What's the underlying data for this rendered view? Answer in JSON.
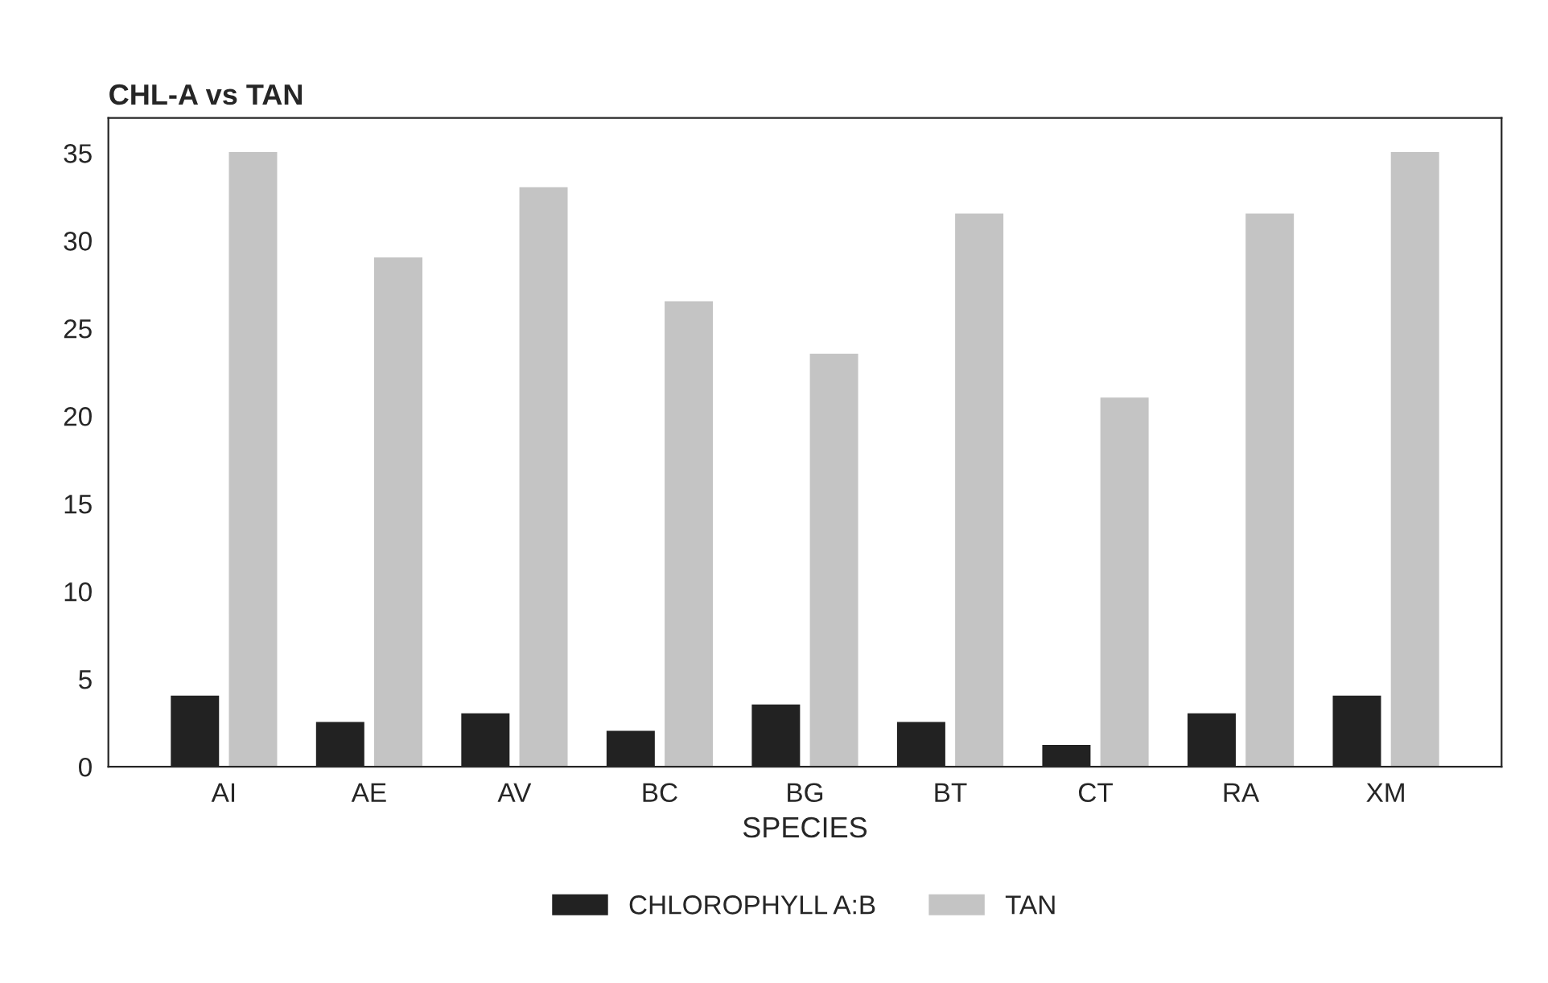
{
  "chart_data": {
    "type": "bar",
    "title": "CHL-A vs TAN",
    "xlabel": "SPECIES",
    "categories": [
      "AI",
      "AE",
      "AV",
      "BC",
      "BG",
      "BT",
      "CT",
      "RA",
      "XM"
    ],
    "series": [
      {
        "name": "CHLOROPHYLL A:B",
        "color": "#222222",
        "values": [
          4,
          2.5,
          3,
          2,
          3.5,
          2.5,
          1.2,
          3,
          4
        ]
      },
      {
        "name": "TAN",
        "color": "#c4c4c4",
        "values": [
          35,
          29,
          33,
          26.5,
          23.5,
          31.5,
          21,
          31.5,
          35
        ]
      }
    ],
    "ylim": [
      0,
      37
    ],
    "yticks": [
      0,
      5,
      10,
      15,
      20,
      25,
      30,
      35
    ],
    "grid": false,
    "legend": "bottom"
  }
}
